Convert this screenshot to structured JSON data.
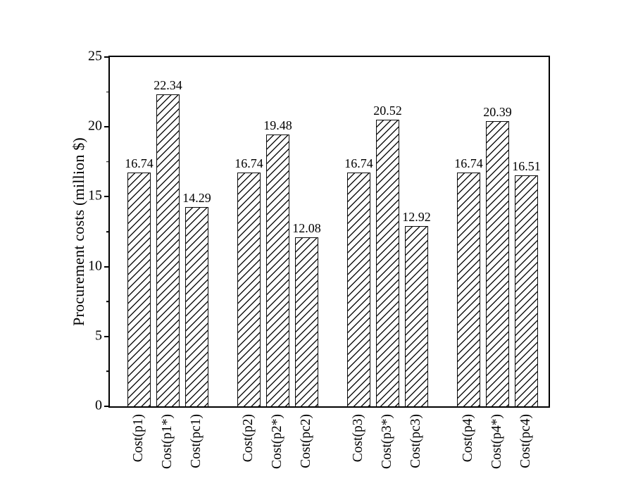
{
  "chart_data": {
    "type": "bar",
    "title": "",
    "ylabel": "Procurement costs (million $)",
    "xlabel": "",
    "ylim": [
      0,
      25
    ],
    "yticks": [
      0,
      5,
      10,
      15,
      20,
      25
    ],
    "yticks_minor": [
      2.5,
      7.5,
      12.5,
      17.5,
      22.5
    ],
    "grid": false,
    "legend": "none",
    "bar_fill_color": "#ffffff",
    "bar_hatch": "forward-diagonal",
    "edge_color": "#000000",
    "text_color": "#000000",
    "background_color": "#ffffff",
    "categories": [
      "Cost(p1)",
      "Cost(p1*)",
      "Cost(pc1)",
      "Cost(p2)",
      "Cost(p2*)",
      "Cost(pc2)",
      "Cost(p3)",
      "Cost(p3*)",
      "Cost(pc3)",
      "Cost(p4)",
      "Cost(p4*)",
      "Cost(pc4)"
    ],
    "values": [
      16.74,
      22.34,
      14.29,
      16.74,
      19.48,
      12.08,
      16.74,
      20.52,
      12.92,
      16.74,
      20.39,
      16.51
    ],
    "value_labels": [
      "16.74",
      "22.34",
      "14.29",
      "16.74",
      "19.48",
      "12.08",
      "16.74",
      "20.52",
      "12.92",
      "16.74",
      "20.39",
      "16.51"
    ],
    "groups": [
      {
        "bar_indexes": [
          0,
          1,
          2
        ]
      },
      {
        "bar_indexes": [
          3,
          4,
          5
        ]
      },
      {
        "bar_indexes": [
          6,
          7,
          8
        ]
      },
      {
        "bar_indexes": [
          9,
          10,
          11
        ]
      }
    ]
  }
}
